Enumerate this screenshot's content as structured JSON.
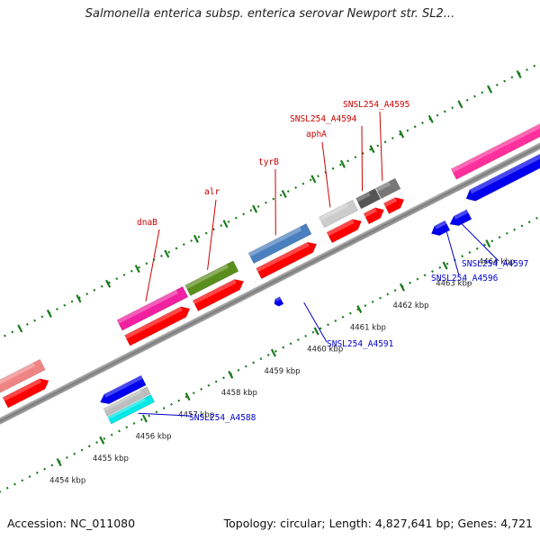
{
  "title": "Salmonella enterica subsp. enterica serovar Newport str. SL2...",
  "footer": {
    "accession": "Accession: NC_011080",
    "summary": "Topology: circular; Length: 4,827,641 bp; Genes: 4,721"
  },
  "colors": {
    "forward_label": "#cc0000",
    "reverse_label": "#0000cc",
    "tick": "#1a7a1a",
    "backbone": "#888888"
  },
  "scale_ticks": [
    {
      "label": "4454 kbp",
      "pos": 4454
    },
    {
      "label": "4455 kbp",
      "pos": 4455
    },
    {
      "label": "4456 kbp",
      "pos": 4456
    },
    {
      "label": "4457 kbp",
      "pos": 4457
    },
    {
      "label": "4458 kbp",
      "pos": 4458
    },
    {
      "label": "4459 kbp",
      "pos": 4459
    },
    {
      "label": "4460 kbp",
      "pos": 4460
    },
    {
      "label": "4461 kbp",
      "pos": 4461
    },
    {
      "label": "4462 kbp",
      "pos": 4462
    },
    {
      "label": "4463 kbp",
      "pos": 4463
    },
    {
      "label": "4464 kbp",
      "pos": 4464
    }
  ],
  "gene_labels": [
    {
      "text": "dnaB",
      "strand": "forward"
    },
    {
      "text": "alr",
      "strand": "forward"
    },
    {
      "text": "tyrB",
      "strand": "forward"
    },
    {
      "text": "aphA",
      "strand": "forward"
    },
    {
      "text": "SNSL254_A4594",
      "strand": "forward"
    },
    {
      "text": "SNSL254_A4595",
      "strand": "forward"
    },
    {
      "text": "SNSL254_A4588",
      "strand": "reverse"
    },
    {
      "text": "SNSL254_A4591",
      "strand": "reverse"
    },
    {
      "text": "SNSL254_A4596",
      "strand": "reverse"
    },
    {
      "text": "SNSL254_A4597",
      "strand": "reverse"
    }
  ]
}
